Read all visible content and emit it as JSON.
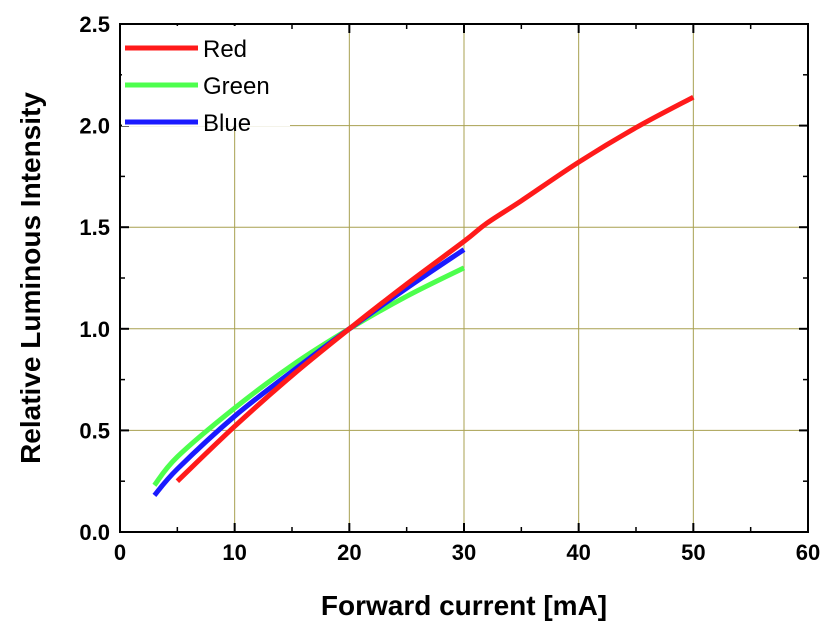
{
  "chart_data": {
    "type": "line",
    "title": "",
    "xlabel": "Forward current [mA]",
    "ylabel": "Relative Luminous Intensity",
    "xlim": [
      0,
      60
    ],
    "ylim": [
      0.0,
      2.5
    ],
    "xticks": [
      "0",
      "10",
      "20",
      "30",
      "40",
      "50",
      "60"
    ],
    "yticks": [
      "0.0",
      "0.5",
      "1.0",
      "1.5",
      "2.0",
      "2.5"
    ],
    "grid": true,
    "legend_position": "top-left",
    "series": [
      {
        "name": "Red",
        "color": "#ff1a1a",
        "x": [
          5,
          10,
          15,
          20,
          25,
          30,
          32,
          35,
          40,
          45,
          50
        ],
        "y": [
          0.25,
          0.52,
          0.77,
          1.0,
          1.22,
          1.43,
          1.52,
          1.63,
          1.82,
          1.99,
          2.14
        ]
      },
      {
        "name": "Green",
        "color": "#4dff4d",
        "x": [
          3,
          5,
          10,
          15,
          20,
          25,
          30
        ],
        "y": [
          0.23,
          0.37,
          0.61,
          0.82,
          1.0,
          1.16,
          1.3
        ]
      },
      {
        "name": "Blue",
        "color": "#1a1aff",
        "x": [
          3,
          5,
          10,
          15,
          20,
          25,
          30
        ],
        "y": [
          0.18,
          0.31,
          0.57,
          0.79,
          1.0,
          1.2,
          1.39
        ]
      }
    ]
  }
}
